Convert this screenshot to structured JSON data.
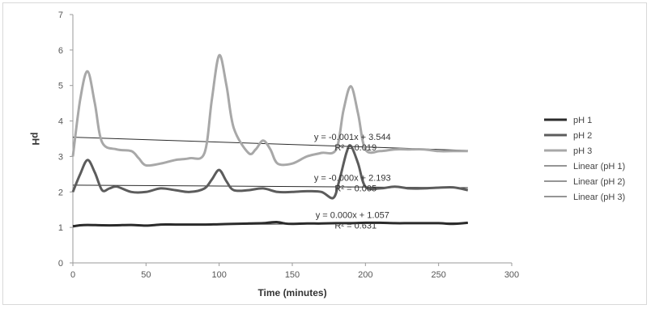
{
  "chart_data": {
    "type": "line",
    "title": "",
    "xlabel": "Time (minutes)",
    "ylabel": "pH",
    "xlim": [
      0,
      300
    ],
    "ylim": [
      0,
      7
    ],
    "x_ticks": [
      0,
      50,
      100,
      150,
      200,
      250,
      300
    ],
    "y_ticks": [
      0,
      1,
      2,
      3,
      4,
      5,
      6,
      7
    ],
    "grid": false,
    "legend_position": "right",
    "series": [
      {
        "name": "pH 1",
        "color": "#2b2b2b",
        "x": [
          0,
          5,
          10,
          20,
          30,
          40,
          50,
          60,
          70,
          80,
          90,
          100,
          110,
          120,
          130,
          135,
          140,
          145,
          150,
          160,
          170,
          180,
          190,
          200,
          210,
          220,
          230,
          240,
          250,
          260,
          270
        ],
        "y": [
          1.03,
          1.06,
          1.07,
          1.06,
          1.06,
          1.07,
          1.05,
          1.08,
          1.08,
          1.08,
          1.08,
          1.09,
          1.1,
          1.11,
          1.12,
          1.14,
          1.15,
          1.11,
          1.1,
          1.11,
          1.11,
          1.12,
          1.12,
          1.13,
          1.13,
          1.12,
          1.12,
          1.12,
          1.12,
          1.1,
          1.13
        ]
      },
      {
        "name": "pH 2",
        "color": "#5c5c5c",
        "x": [
          0,
          5,
          10,
          15,
          20,
          25,
          30,
          40,
          50,
          60,
          70,
          80,
          90,
          95,
          100,
          105,
          110,
          120,
          130,
          140,
          150,
          160,
          170,
          178,
          182,
          187,
          190,
          195,
          200,
          210,
          220,
          230,
          240,
          250,
          260,
          270
        ],
        "y": [
          2.0,
          2.5,
          2.9,
          2.55,
          2.05,
          2.1,
          2.15,
          2.0,
          2.0,
          2.1,
          2.05,
          2.0,
          2.1,
          2.35,
          2.62,
          2.3,
          2.05,
          2.05,
          2.1,
          2.0,
          2.0,
          2.02,
          2.0,
          1.83,
          2.3,
          3.1,
          3.3,
          2.8,
          2.15,
          2.1,
          2.15,
          2.1,
          2.1,
          2.12,
          2.13,
          2.05
        ]
      },
      {
        "name": "pH 3",
        "color": "#a8a8a8",
        "x": [
          0,
          5,
          10,
          15,
          20,
          30,
          40,
          45,
          50,
          60,
          70,
          80,
          90,
          95,
          100,
          105,
          110,
          120,
          125,
          130,
          135,
          140,
          150,
          160,
          170,
          180,
          185,
          190,
          195,
          200,
          210,
          220,
          230,
          240,
          250,
          260,
          270
        ],
        "y": [
          3.0,
          4.6,
          5.4,
          4.5,
          3.4,
          3.2,
          3.15,
          2.95,
          2.75,
          2.8,
          2.9,
          2.95,
          3.1,
          4.6,
          5.85,
          5.0,
          3.8,
          3.1,
          3.2,
          3.45,
          3.2,
          2.8,
          2.8,
          3.0,
          3.1,
          3.2,
          4.3,
          4.98,
          4.2,
          3.2,
          3.15,
          3.2,
          3.2,
          3.2,
          3.15,
          3.15,
          3.15
        ]
      },
      {
        "name": "Linear (pH 1)",
        "color": "#2b2b2b",
        "trendline": true,
        "x": [
          0,
          270
        ],
        "y": [
          1.057,
          1.13
        ]
      },
      {
        "name": "Linear (pH 2)",
        "color": "#2b2b2b",
        "trendline": true,
        "x": [
          0,
          270
        ],
        "y": [
          2.193,
          2.12
        ]
      },
      {
        "name": "Linear (pH 3)",
        "color": "#2b2b2b",
        "trendline": true,
        "x": [
          0,
          270
        ],
        "y": [
          3.544,
          3.17
        ]
      }
    ],
    "annotations": [
      {
        "series": "pH 3",
        "equation": "y = -0.001x + 3.544",
        "r2": "R² = 0.019",
        "x": 190,
        "y": 3.35
      },
      {
        "series": "pH 2",
        "equation": "y = -0.000x + 2.193",
        "r2": "R² = 0.005",
        "x": 190,
        "y": 2.2
      },
      {
        "series": "pH 1",
        "equation": "y = 0.000x + 1.057",
        "r2": "R² = 0.631",
        "x": 190,
        "y": 1.15
      }
    ]
  }
}
